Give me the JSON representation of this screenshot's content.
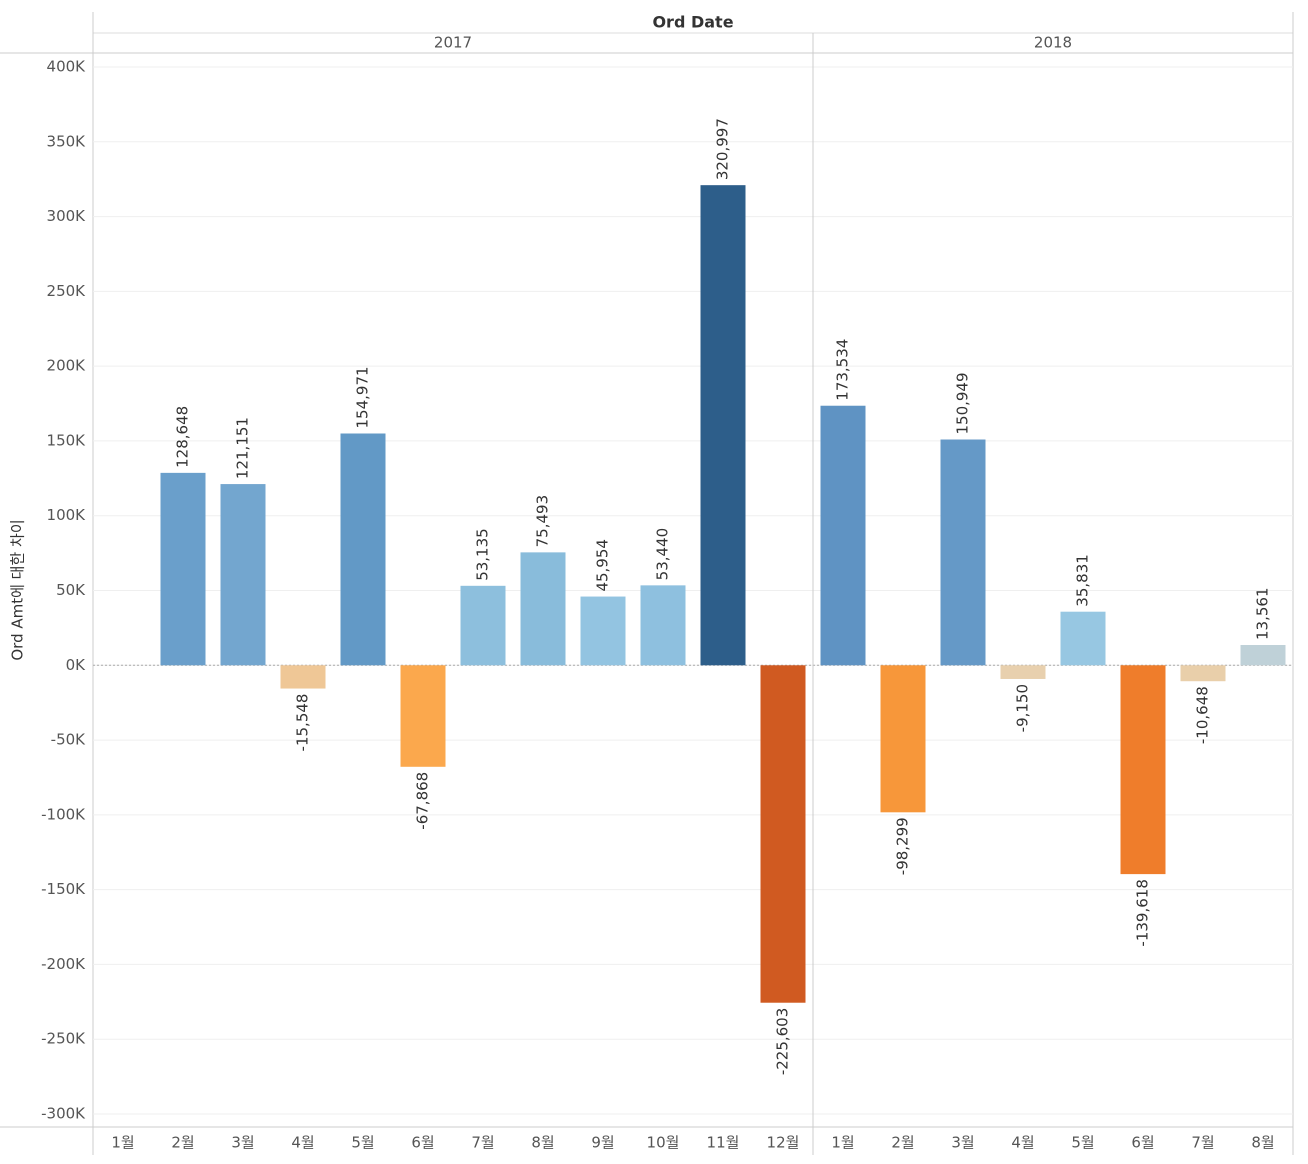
{
  "chart_data": {
    "type": "bar",
    "title": "Ord Date",
    "y_label": "Ord Amt에 대한 차이",
    "ylim": [
      -300000,
      400000
    ],
    "yticks": [
      {
        "value": -300000,
        "label": "-300K"
      },
      {
        "value": -250000,
        "label": "-250K"
      },
      {
        "value": -200000,
        "label": "-200K"
      },
      {
        "value": -150000,
        "label": "-150K"
      },
      {
        "value": -100000,
        "label": "-100K"
      },
      {
        "value": -50000,
        "label": "-50K"
      },
      {
        "value": 0,
        "label": "0K"
      },
      {
        "value": 50000,
        "label": "50K"
      },
      {
        "value": 100000,
        "label": "100K"
      },
      {
        "value": 150000,
        "label": "150K"
      },
      {
        "value": 200000,
        "label": "200K"
      },
      {
        "value": 250000,
        "label": "250K"
      },
      {
        "value": 300000,
        "label": "300K"
      },
      {
        "value": 350000,
        "label": "350K"
      },
      {
        "value": 400000,
        "label": "400K"
      }
    ],
    "grid": true,
    "groups": [
      {
        "name": "2017",
        "categories": [
          "1월",
          "2월",
          "3월",
          "4월",
          "5월",
          "6월",
          "7월",
          "8월",
          "9월",
          "10월",
          "11월",
          "12월"
        ],
        "values": [
          null,
          128648,
          121151,
          -15548,
          154971,
          -67868,
          53135,
          75493,
          45954,
          53440,
          320997,
          -225603
        ],
        "value_labels": [
          null,
          "128,648",
          "121,151",
          "-15,548",
          "154,971",
          "-67,868",
          "53,135",
          "75,493",
          "45,954",
          "53,440",
          "320,997",
          "-225,603"
        ],
        "colors": [
          null,
          "#6a9fcb",
          "#73a6cf",
          "#efc796",
          "#6299c6",
          "#fba84d",
          "#8dbfdd",
          "#89bcdb",
          "#93c4e1",
          "#8ec0df",
          "#2d5e8a",
          "#d05a21"
        ]
      },
      {
        "name": "2018",
        "categories": [
          "1월",
          "2월",
          "3월",
          "4월",
          "5월",
          "6월",
          "7월",
          "8월"
        ],
        "values": [
          173534,
          -98299,
          150949,
          -9150,
          35831,
          -139618,
          -10648,
          13561
        ],
        "value_labels": [
          "173,534",
          "-98,299",
          "150,949",
          "-9,150",
          "35,831",
          "-139,618",
          "-10,648",
          "13,561"
        ],
        "colors": [
          "#5f93c3",
          "#f7973a",
          "#6599c7",
          "#e8d0ae",
          "#97c7e2",
          "#ef7d2b",
          "#e9cfaa",
          "#bfd1d8"
        ]
      }
    ]
  }
}
